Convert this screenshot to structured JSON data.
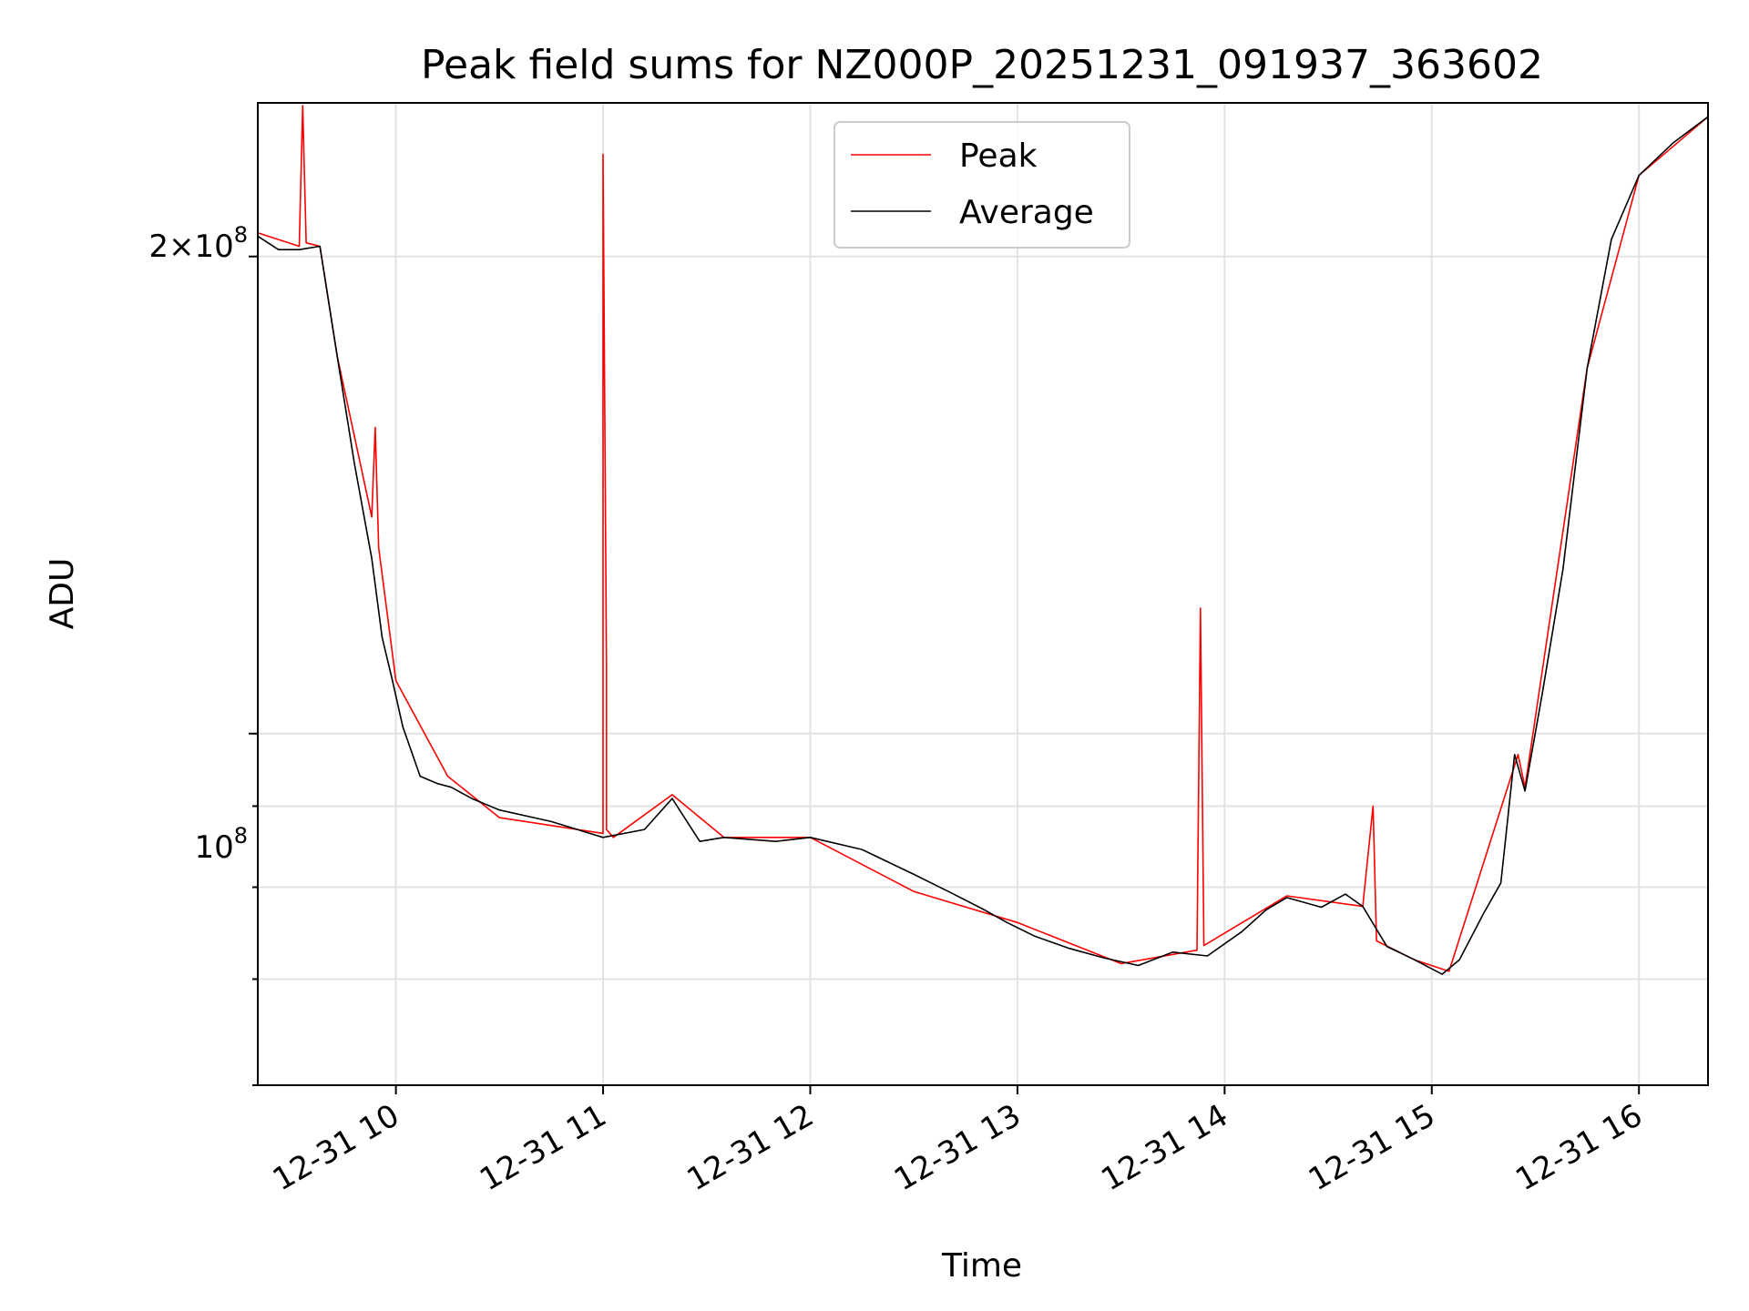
{
  "chart_data": {
    "type": "line",
    "title": "Peak field sums for NZ000P_20251231_091937_363602",
    "xlabel": "Time",
    "ylabel": "ADU",
    "yscale": "log",
    "xlim": [
      "2025-12-31 09:20",
      "2025-12-31 16:20"
    ],
    "ylim": [
      60000000,
      250000000
    ],
    "x_ticks": [
      "12-31 10",
      "12-31 11",
      "12-31 12",
      "12-31 13",
      "12-31 14",
      "12-31 15",
      "12-31 16"
    ],
    "y_tick_labels": {
      "major_200M": "2×10",
      "major_200M_exp": "8",
      "major_100M": "10",
      "major_100M_exp": "8"
    },
    "grid": true,
    "legend": {
      "position": "top-center",
      "entries": [
        "Peak",
        "Average"
      ]
    },
    "colors": {
      "Peak": "#ff0000",
      "Average": "#000000"
    },
    "series": [
      {
        "name": "Average",
        "x": [
          "2025-12-31 09:20",
          "2025-12-31 09:26",
          "2025-12-31 09:32",
          "2025-12-31 09:38",
          "2025-12-31 09:43",
          "2025-12-31 09:48",
          "2025-12-31 09:53",
          "2025-12-31 09:56",
          "2025-12-31 09:59",
          "2025-12-31 10:02",
          "2025-12-31 10:07",
          "2025-12-31 10:12",
          "2025-12-31 10:16",
          "2025-12-31 10:22",
          "2025-12-31 10:30",
          "2025-12-31 10:45",
          "2025-12-31 11:00",
          "2025-12-31 11:12",
          "2025-12-31 11:20",
          "2025-12-31 11:28",
          "2025-12-31 11:35",
          "2025-12-31 11:50",
          "2025-12-31 12:00",
          "2025-12-31 12:15",
          "2025-12-31 12:30",
          "2025-12-31 12:40",
          "2025-12-31 12:50",
          "2025-12-31 12:57",
          "2025-12-31 13:05",
          "2025-12-31 13:15",
          "2025-12-31 13:25",
          "2025-12-31 13:35",
          "2025-12-31 13:45",
          "2025-12-31 13:55",
          "2025-12-31 14:05",
          "2025-12-31 14:12",
          "2025-12-31 14:18",
          "2025-12-31 14:28",
          "2025-12-31 14:35",
          "2025-12-31 14:40",
          "2025-12-31 14:47",
          "2025-12-31 14:55",
          "2025-12-31 15:03",
          "2025-12-31 15:08",
          "2025-12-31 15:15",
          "2025-12-31 15:20",
          "2025-12-31 15:24",
          "2025-12-31 15:27",
          "2025-12-31 15:32",
          "2025-12-31 15:38",
          "2025-12-31 15:45",
          "2025-12-31 15:52",
          "2025-12-31 16:00",
          "2025-12-31 16:10",
          "2025-12-31 16:20"
        ],
        "values": [
          206000000,
          202000000,
          202000000,
          203000000,
          173000000,
          148000000,
          129000000,
          115000000,
          108000000,
          101000000,
          94000000,
          93000000,
          92500000,
          91000000,
          89500000,
          88000000,
          86000000,
          87000000,
          91000000,
          85500000,
          86000000,
          85500000,
          86000000,
          84500000,
          81500000,
          79500000,
          77500000,
          76000000,
          74500000,
          73200000,
          72200000,
          71400000,
          72800000,
          72400000,
          75000000,
          77400000,
          78800000,
          77700000,
          79200000,
          77800000,
          73400000,
          72000000,
          70500000,
          72000000,
          77000000,
          80500000,
          97000000,
          92000000,
          106000000,
          127000000,
          170000000,
          205000000,
          225000000,
          236000000,
          245000000
        ]
      },
      {
        "name": "Peak",
        "x": [
          "2025-12-31 09:20",
          "2025-12-31 09:32",
          "2025-12-31 09:33",
          "2025-12-31 09:34",
          "2025-12-31 09:38",
          "2025-12-31 09:43",
          "2025-12-31 09:53",
          "2025-12-31 09:54",
          "2025-12-31 09:55",
          "2025-12-31 10:00",
          "2025-12-31 10:15",
          "2025-12-31 10:30",
          "2025-12-31 11:00",
          "2025-12-31 11:00",
          "2025-12-31 11:01",
          "2025-12-31 11:01",
          "2025-12-31 11:03",
          "2025-12-31 11:20",
          "2025-12-31 11:35",
          "2025-12-31 12:00",
          "2025-12-31 12:30",
          "2025-12-31 13:00",
          "2025-12-31 13:30",
          "2025-12-31 13:52",
          "2025-12-31 13:53",
          "2025-12-31 13:54",
          "2025-12-31 14:18",
          "2025-12-31 14:40",
          "2025-12-31 14:43",
          "2025-12-31 14:44",
          "2025-12-31 14:55",
          "2025-12-31 15:05",
          "2025-12-31 15:25",
          "2025-12-31 15:27",
          "2025-12-31 15:45",
          "2025-12-31 16:00",
          "2025-12-31 16:20"
        ],
        "values": [
          207000000,
          203000000,
          249000000,
          204000000,
          203000000,
          173000000,
          137000000,
          156000000,
          131000000,
          108000000,
          94000000,
          88500000,
          86500000,
          232000000,
          110000000,
          87000000,
          86000000,
          91500000,
          86000000,
          86000000,
          79500000,
          76000000,
          71600000,
          73000000,
          120000000,
          73500000,
          79000000,
          77800000,
          90000000,
          74000000,
          72000000,
          70800000,
          97000000,
          92500000,
          170000000,
          225000000,
          245000000
        ]
      }
    ]
  }
}
